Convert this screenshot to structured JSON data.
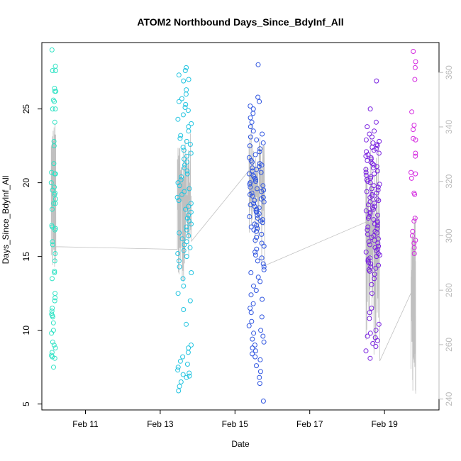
{
  "chart_data": {
    "type": "scatter",
    "title": "ATOM2 Northbound Days_Since_BdyInf_All",
    "xlabel": "Date",
    "ylabel": "Days_Since_BdyInf_All",
    "xlim": [
      "2020-02-09 20:00",
      "2020-02-20 11:00"
    ],
    "ylim": [
      4.6,
      29.5
    ],
    "y2lim": [
      236,
      371
    ],
    "x_ticks": [
      "Feb 11",
      "Feb 13",
      "Feb 15",
      "Feb 17",
      "Feb 19"
    ],
    "x_tick_dates": [
      "2020-02-11",
      "2020-02-13",
      "2020-02-15",
      "2020-02-17",
      "2020-02-19"
    ],
    "y_ticks": [
      5,
      10,
      15,
      20,
      25
    ],
    "y2_ticks": [
      240,
      260,
      280,
      300,
      320,
      340,
      360
    ],
    "grid": false,
    "legend": "none",
    "colors": {
      "g1": "#30e3c5",
      "g2": "#22c4e0",
      "g3": "#2f55e0",
      "g4": "#7a22e0",
      "g5": "#d42ae0",
      "line": "#c0c0c0",
      "axis": "#000000",
      "axis_right": "#bbbbbb"
    },
    "series": [
      {
        "color_key": "g1",
        "x_range": [
          "2020-02-10 02:00",
          "2020-02-10 05:00"
        ],
        "values": [
          29.0,
          27.9,
          27.6,
          27.6,
          26.4,
          26.2,
          26.2,
          25.6,
          25.5,
          25.0,
          25.0,
          24.1,
          22.8,
          22.5,
          21.3,
          20.7,
          20.6,
          20.6,
          20.0,
          19.7,
          19.5,
          19.3,
          19.2,
          18.9,
          18.6,
          18.6,
          18.2,
          17.1,
          17.0,
          16.9,
          16.8,
          16.0,
          15.8,
          15.2,
          14.7,
          14.0,
          13.9,
          13.5,
          12.5,
          12.2,
          12.0,
          11.5,
          11.3,
          11.1,
          11.0,
          10.9,
          10.5,
          10.0,
          9.8,
          9.2,
          9.0,
          8.8,
          8.5,
          8.3,
          8.2,
          8.1,
          7.5
        ]
      },
      {
        "color_key": "g2",
        "x_range": [
          "2020-02-13 11:00",
          "2020-02-13 20:00"
        ],
        "values": [
          27.8,
          27.6,
          27.3,
          27.0,
          26.9,
          26.3,
          26.0,
          25.7,
          25.5,
          25.3,
          25.1,
          24.9,
          24.6,
          24.3,
          24.0,
          23.8,
          23.5,
          23.2,
          23.0,
          22.8,
          22.6,
          22.4,
          22.2,
          22.0,
          21.8,
          21.6,
          21.4,
          21.2,
          21.0,
          20.8,
          20.6,
          20.4,
          20.2,
          20.0,
          19.8,
          19.6,
          19.4,
          19.2,
          19.0,
          18.8,
          18.6,
          18.4,
          18.2,
          18.0,
          17.8,
          17.6,
          17.4,
          17.2,
          17.0,
          16.8,
          16.6,
          16.4,
          16.2,
          16.0,
          15.8,
          15.6,
          15.4,
          15.2,
          15.0,
          14.7,
          14.3,
          13.9,
          13.5,
          13.0,
          12.5,
          12.0,
          11.4,
          10.4,
          9.0,
          8.8,
          8.5,
          8.2,
          7.9,
          7.7,
          7.5,
          7.3,
          7.1,
          7.0,
          6.9,
          6.8,
          6.5,
          6.2,
          5.9
        ]
      },
      {
        "color_key": "g3",
        "x_range": [
          "2020-02-15 09:00",
          "2020-02-15 19:00"
        ],
        "values": [
          28.0,
          25.8,
          25.5,
          25.2,
          25.0,
          24.7,
          24.4,
          24.1,
          23.8,
          23.5,
          23.3,
          23.1,
          22.9,
          22.7,
          22.5,
          22.3,
          22.1,
          21.9,
          21.7,
          21.5,
          21.4,
          21.3,
          21.2,
          21.1,
          21.0,
          20.9,
          20.8,
          20.7,
          20.6,
          20.5,
          20.4,
          20.3,
          20.2,
          20.1,
          20.0,
          19.9,
          19.8,
          19.7,
          19.6,
          19.5,
          19.4,
          19.3,
          19.2,
          19.1,
          19.0,
          18.9,
          18.8,
          18.7,
          18.6,
          18.5,
          18.4,
          18.3,
          18.2,
          18.1,
          18.0,
          17.9,
          17.8,
          17.7,
          17.6,
          17.5,
          17.4,
          17.3,
          17.2,
          17.1,
          17.0,
          16.9,
          16.8,
          16.7,
          16.5,
          16.3,
          16.1,
          15.9,
          15.7,
          15.5,
          15.3,
          15.1,
          14.9,
          14.7,
          14.5,
          14.3,
          14.1,
          13.9,
          13.6,
          13.3,
          13.0,
          12.7,
          12.4,
          12.1,
          11.8,
          11.5,
          11.2,
          10.9,
          10.6,
          10.3,
          10.0,
          9.8,
          9.6,
          9.4,
          9.2,
          9.0,
          8.8,
          8.6,
          8.4,
          8.2,
          8.0,
          7.6,
          7.2,
          6.8,
          6.4,
          5.2
        ]
      },
      {
        "color_key": "g4",
        "x_range": [
          "2020-02-18 12:00",
          "2020-02-18 21:00"
        ],
        "values": [
          26.9,
          25.0,
          24.1,
          23.8,
          23.5,
          23.3,
          23.1,
          22.9,
          22.8,
          22.7,
          22.6,
          22.5,
          22.4,
          22.3,
          22.2,
          22.1,
          22.0,
          21.9,
          21.8,
          21.7,
          21.6,
          21.5,
          21.4,
          21.3,
          21.2,
          21.1,
          21.0,
          20.9,
          20.8,
          20.7,
          20.6,
          20.5,
          20.4,
          20.3,
          20.2,
          20.1,
          20.0,
          19.9,
          19.8,
          19.7,
          19.6,
          19.5,
          19.4,
          19.3,
          19.2,
          19.1,
          19.0,
          18.9,
          18.8,
          18.7,
          18.6,
          18.5,
          18.4,
          18.3,
          18.2,
          18.1,
          18.0,
          17.9,
          17.8,
          17.7,
          17.6,
          17.5,
          17.4,
          17.3,
          17.2,
          17.1,
          17.0,
          16.9,
          16.8,
          16.7,
          16.6,
          16.5,
          16.4,
          16.3,
          16.2,
          16.1,
          16.0,
          15.9,
          15.8,
          15.7,
          15.6,
          15.5,
          15.4,
          15.3,
          15.2,
          15.1,
          15.0,
          14.9,
          14.8,
          14.7,
          14.6,
          14.5,
          14.4,
          14.3,
          14.2,
          14.1,
          14.0,
          13.8,
          13.5,
          13.1,
          12.5,
          11.5,
          11.2,
          10.8,
          10.4,
          10.0,
          9.8,
          9.6,
          9.5,
          9.3,
          9.1,
          8.9,
          8.6,
          8.1
        ]
      },
      {
        "color_key": "g5",
        "x_range": [
          "2020-02-19 17:00",
          "2020-02-19 20:00"
        ],
        "values": [
          28.9,
          28.2,
          27.8,
          27.0,
          24.8,
          23.9,
          23.6,
          23.0,
          22.9,
          22.0,
          21.8,
          20.7,
          20.6,
          20.3,
          19.3,
          19.2,
          17.6,
          17.4,
          16.7,
          16.4,
          16.1,
          15.9,
          15.6,
          15.2
        ]
      }
    ],
    "line_series": {
      "axis": "right",
      "color_key": "line",
      "segments": [
        {
          "x_range": [
            "2020-02-10 02:00",
            "2020-02-10 05:00"
          ],
          "y_min": 283,
          "y_max": 342,
          "end": [
            "2020-02-10 05:00",
            296
          ]
        },
        {
          "x_range": [
            "2020-02-13 11:00",
            "2020-02-13 20:00"
          ],
          "start": [
            "2020-02-13 11:00",
            295
          ],
          "y_min": 283,
          "y_max": 340,
          "end": [
            "2020-02-13 20:00",
            298
          ]
        },
        {
          "x_range": [
            "2020-02-15 09:00",
            "2020-02-15 19:00"
          ],
          "start": [
            "2020-02-15 09:00",
            324
          ],
          "y_min": 290,
          "y_max": 341,
          "end": [
            "2020-02-15 19:00",
            289
          ]
        },
        {
          "x_range": [
            "2020-02-18 12:00",
            "2020-02-18 21:00"
          ],
          "start": [
            "2020-02-18 12:00",
            305
          ],
          "y_min": 256,
          "y_max": 337,
          "end": [
            "2020-02-18 21:00",
            254
          ]
        },
        {
          "x_range": [
            "2020-02-19 17:00",
            "2020-02-19 20:00"
          ],
          "start": [
            "2020-02-19 17:00",
            279
          ],
          "y_min": 242,
          "y_max": 308,
          "end": [
            "2020-02-19 20:00",
            242
          ]
        }
      ]
    }
  }
}
